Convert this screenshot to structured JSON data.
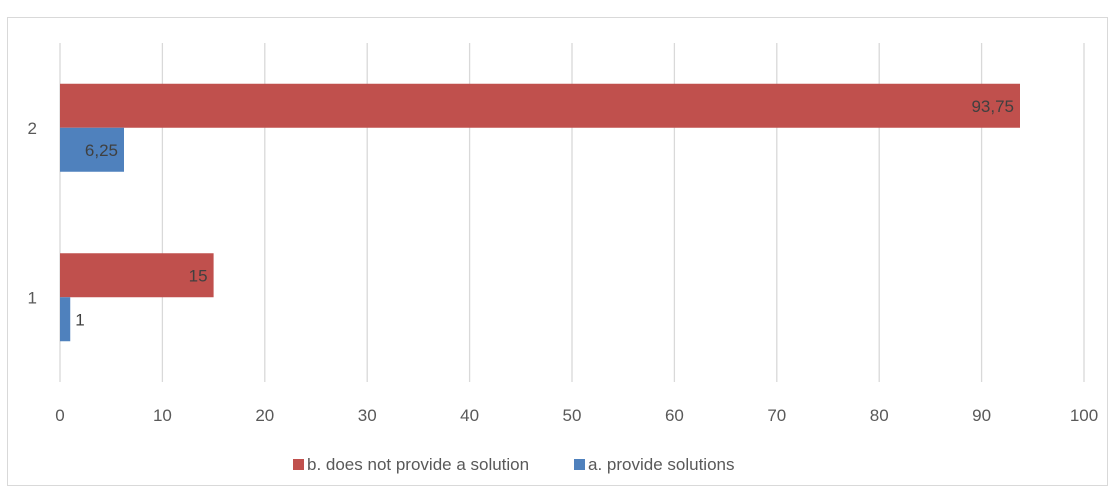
{
  "chart_data": {
    "type": "bar",
    "orientation": "horizontal",
    "categories": [
      "1",
      "2"
    ],
    "series": [
      {
        "name": "b. does not provide a solution",
        "color": "#c0504d",
        "values": [
          15,
          93.75
        ],
        "labels": [
          "15",
          "93,75"
        ]
      },
      {
        "name": "a. provide solutions",
        "color": "#4f81bd",
        "values": [
          1,
          6.25
        ],
        "labels": [
          "1",
          "6,25"
        ]
      }
    ],
    "x_ticks": [
      "0",
      "10",
      "20",
      "30",
      "40",
      "50",
      "60",
      "70",
      "80",
      "90",
      "100"
    ],
    "xlim": [
      0,
      100
    ],
    "grid": "vertical",
    "legend_position": "bottom",
    "title": "",
    "xlabel": "",
    "ylabel": ""
  }
}
